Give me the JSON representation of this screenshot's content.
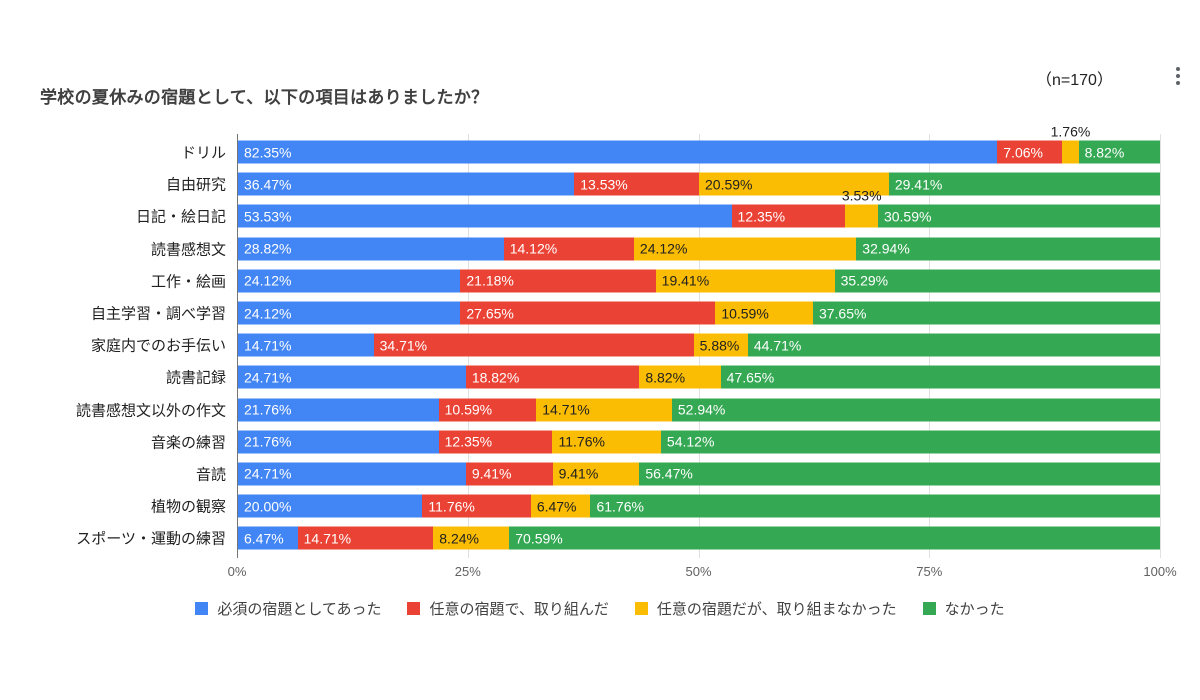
{
  "header": {
    "title": "学校の夏休みの宿題として、以下の項目はありましたか？",
    "sample_label": "（n=170）"
  },
  "menu": {
    "more_options_icon": "kebab-menu-icon"
  },
  "chart_data": {
    "type": "bar",
    "stacked": true,
    "orientation": "horizontal",
    "unit": "%",
    "title": "学校の夏休みの宿題として、以下の項目はありましたか？",
    "categories": [
      "ドリル",
      "自由研究",
      "日記・絵日記",
      "読書感想文",
      "工作・絵画",
      "自主学習・調べ学習",
      "家庭内でのお手伝い",
      "読書記録",
      "読書感想文以外の作文",
      "音楽の練習",
      "音読",
      "植物の観察",
      "スポーツ・運動の練習"
    ],
    "series": [
      {
        "name": "必須の宿題としてあった",
        "color": "#4285f4",
        "label_color": "#ffffff",
        "values": [
          82.35,
          36.47,
          53.53,
          28.82,
          24.12,
          24.12,
          14.71,
          24.71,
          21.76,
          21.76,
          24.71,
          20.0,
          6.47
        ]
      },
      {
        "name": "任意の宿題で、取り組んだ",
        "color": "#ea4335",
        "label_color": "#ffffff",
        "values": [
          7.06,
          13.53,
          12.35,
          14.12,
          21.18,
          27.65,
          34.71,
          18.82,
          10.59,
          12.35,
          9.41,
          11.76,
          14.71
        ]
      },
      {
        "name": "任意の宿題だが、取り組まなかった",
        "color": "#fbbc04",
        "label_color": "#212121",
        "values": [
          1.76,
          20.59,
          3.53,
          24.12,
          19.41,
          10.59,
          5.88,
          8.82,
          14.71,
          11.76,
          9.41,
          6.47,
          8.24
        ]
      },
      {
        "name": "なかった",
        "color": "#34a853",
        "label_color": "#ffffff",
        "values": [
          8.82,
          29.41,
          30.59,
          32.94,
          35.29,
          37.65,
          44.71,
          47.65,
          52.94,
          54.12,
          56.47,
          61.76,
          70.59
        ]
      }
    ],
    "xticks": [
      {
        "pct": 0,
        "label": "0%"
      },
      {
        "pct": 25,
        "label": "25%"
      },
      {
        "pct": 50,
        "label": "50%"
      },
      {
        "pct": 75,
        "label": "75%"
      },
      {
        "pct": 100,
        "label": "100%"
      }
    ],
    "xlim": [
      0,
      100
    ],
    "grid": true,
    "legend_position": "bottom",
    "label_above_threshold_pct": 4,
    "value_label_format": "0.00%"
  }
}
